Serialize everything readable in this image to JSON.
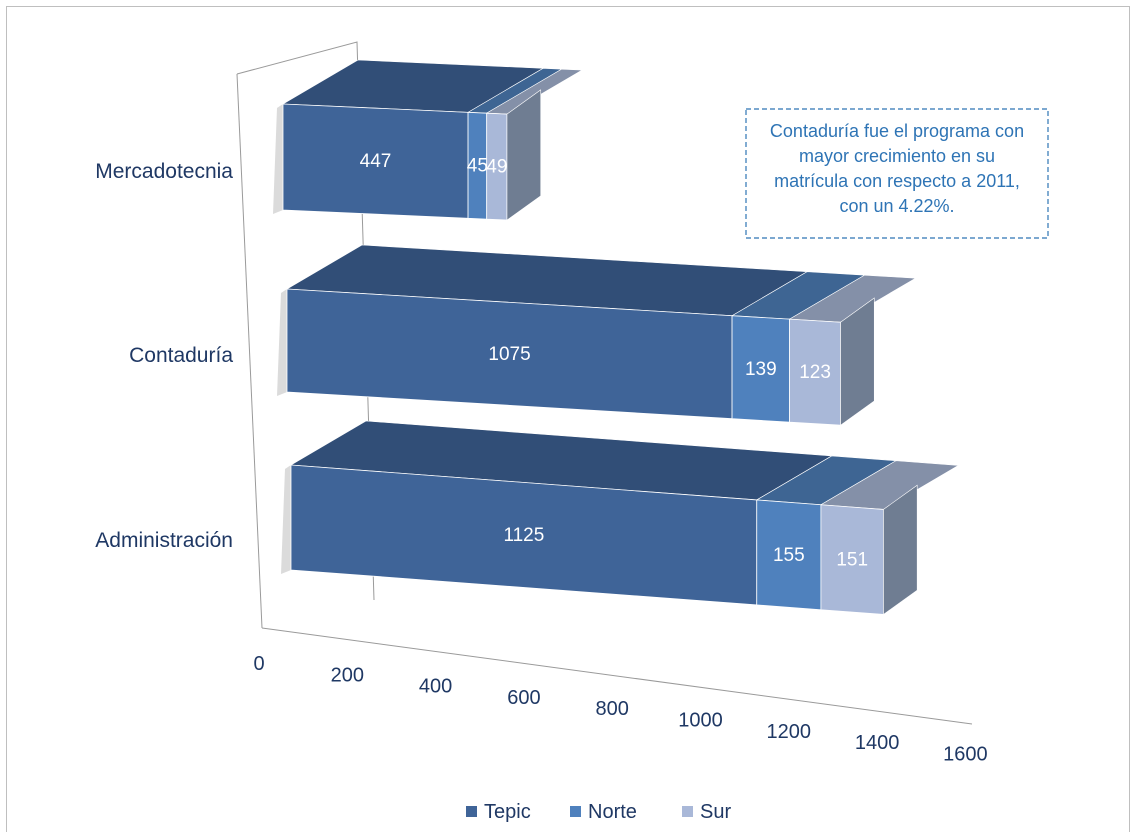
{
  "chart_data": {
    "type": "bar",
    "orientation": "horizontal",
    "stacked": true,
    "three_d": true,
    "categories": [
      "Administración",
      "Contaduría",
      "Mercadotecnia"
    ],
    "series": [
      {
        "name": "Tepic",
        "values": [
          1125,
          1075,
          447
        ],
        "color": "#3f6498"
      },
      {
        "name": "Norte",
        "values": [
          155,
          139,
          45
        ],
        "color": "#4f81bd"
      },
      {
        "name": "Sur",
        "values": [
          151,
          123,
          49
        ],
        "color": "#a9b8d8"
      }
    ],
    "xaxis_ticks": [
      "0",
      "200",
      "400",
      "600",
      "800",
      "1000",
      "1200",
      "1400",
      "1600"
    ],
    "xlim": [
      0,
      1600
    ],
    "legend_position": "bottom",
    "annotation": "Contaduría fue el programa con mayor crecimiento en su matrícula con respecto a 2011, con un 4.22%."
  }
}
